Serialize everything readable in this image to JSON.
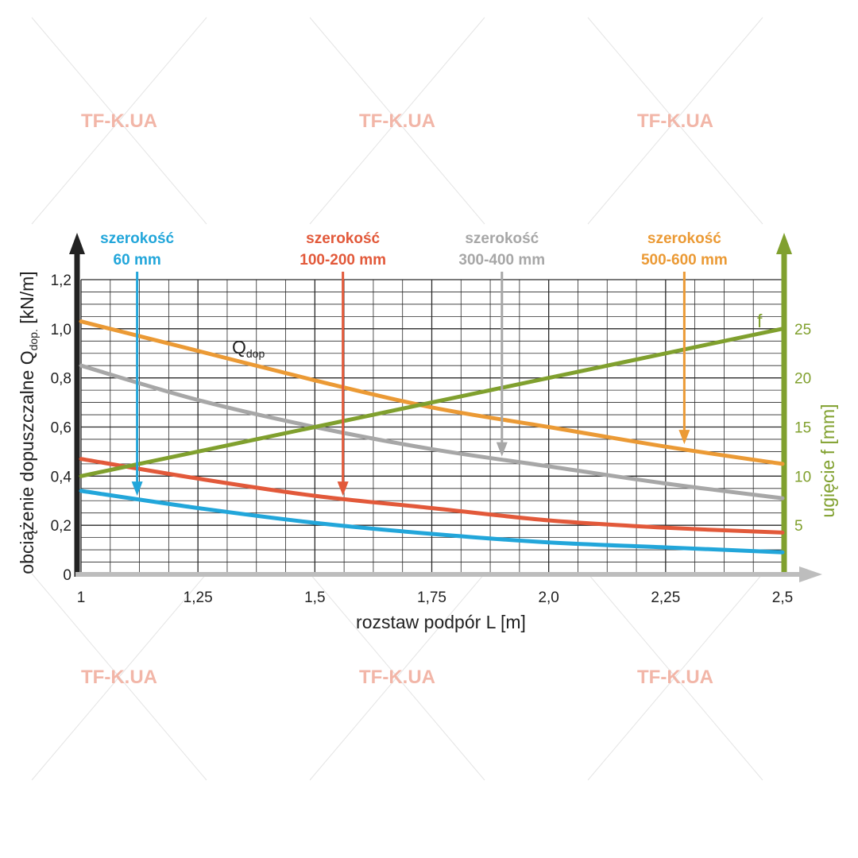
{
  "watermark": "TF-K.UA",
  "chart_data": {
    "type": "line",
    "xlabel": "rozstaw podpór L [m]",
    "ylabel": {
      "main": "obciążenie dopuszczalne Q",
      "sub": "dop.",
      "unit": " [kN/m]"
    },
    "y2label": "ugięcie f [mm]",
    "xlim": [
      1,
      2.5
    ],
    "ylim": [
      0,
      1.2
    ],
    "y2lim": [
      0,
      30
    ],
    "x_ticks": [
      {
        "value": 1,
        "label": "1"
      },
      {
        "value": 1.25,
        "label": "1,25"
      },
      {
        "value": 1.5,
        "label": "1,5"
      },
      {
        "value": 1.75,
        "label": "1,75"
      },
      {
        "value": 2.0,
        "label": "2,0"
      },
      {
        "value": 2.25,
        "label": "2,25"
      },
      {
        "value": 2.5,
        "label": "2,5"
      }
    ],
    "y_ticks": [
      {
        "value": 0,
        "label": "0"
      },
      {
        "value": 0.2,
        "label": "0,2"
      },
      {
        "value": 0.4,
        "label": "0,4"
      },
      {
        "value": 0.6,
        "label": "0,6"
      },
      {
        "value": 0.8,
        "label": "0,8"
      },
      {
        "value": 1.0,
        "label": "1,0"
      },
      {
        "value": 1.2,
        "label": "1,2"
      }
    ],
    "y2_ticks": [
      {
        "value": 5,
        "label": "5"
      },
      {
        "value": 10,
        "label": "10"
      },
      {
        "value": 15,
        "label": "15"
      },
      {
        "value": 20,
        "label": "20"
      },
      {
        "value": 25,
        "label": "25"
      }
    ],
    "grid": true,
    "x": [
      1.0,
      1.25,
      1.5,
      1.75,
      2.0,
      2.25,
      2.5
    ],
    "series": [
      {
        "key": "w500",
        "label": "Q",
        "label_sub": "dop",
        "color": "#eb9a35",
        "axis": "left",
        "values": [
          1.03,
          0.91,
          0.79,
          0.68,
          0.6,
          0.52,
          0.45
        ]
      },
      {
        "key": "w300",
        "color": "#a7a7a7",
        "axis": "left",
        "values": [
          0.85,
          0.71,
          0.6,
          0.51,
          0.44,
          0.37,
          0.31
        ]
      },
      {
        "key": "w100",
        "color": "#e2593a",
        "axis": "left",
        "values": [
          0.47,
          0.39,
          0.32,
          0.27,
          0.22,
          0.19,
          0.17
        ]
      },
      {
        "key": "w60",
        "color": "#22a6da",
        "axis": "left",
        "values": [
          0.34,
          0.27,
          0.21,
          0.165,
          0.13,
          0.11,
          0.09
        ]
      },
      {
        "key": "f",
        "label": "f",
        "color": "#80a02e",
        "axis": "right",
        "values": [
          10,
          12.5,
          15,
          17.5,
          20,
          22.5,
          25
        ]
      }
    ],
    "annotations": [
      {
        "line1": "szerokość",
        "line2": "60 mm",
        "color": "#22a6da",
        "x": 1.12,
        "y": 0.32
      },
      {
        "line1": "szerokość",
        "line2": "100-200 mm",
        "color": "#e2593a",
        "x": 1.56,
        "y": 0.32
      },
      {
        "line1": "szerokość",
        "line2": "300-400 mm",
        "color": "#a7a7a7",
        "x": 1.9,
        "y": 0.48
      },
      {
        "line1": "szerokość",
        "line2": "500-600 mm",
        "color": "#eb9a35",
        "x": 2.29,
        "y": 0.53
      }
    ],
    "axis_colors": {
      "left": "#222222",
      "right": "#80a02e",
      "bottom": "#bdbdbd"
    }
  }
}
